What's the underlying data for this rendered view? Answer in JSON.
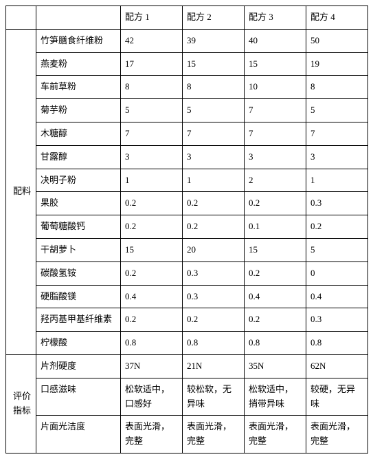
{
  "header": {
    "blank1": "",
    "blank2": "",
    "col1": "配方 1",
    "col2": "配方 2",
    "col3": "配方 3",
    "col4": "配方 4"
  },
  "section1": {
    "label": "配料",
    "rows": [
      {
        "name": "竹笋膳食纤维粉",
        "v1": "42",
        "v2": "39",
        "v3": "40",
        "v4": "50"
      },
      {
        "name": "燕麦粉",
        "v1": "17",
        "v2": "15",
        "v3": "15",
        "v4": "19"
      },
      {
        "name": "车前草粉",
        "v1": "8",
        "v2": "8",
        "v3": "10",
        "v4": "8"
      },
      {
        "name": "菊芋粉",
        "v1": "5",
        "v2": "5",
        "v3": "7",
        "v4": "5"
      },
      {
        "name": "木糖醇",
        "v1": "7",
        "v2": "7",
        "v3": "7",
        "v4": "7"
      },
      {
        "name": "甘露醇",
        "v1": "3",
        "v2": "3",
        "v3": "3",
        "v4": "3"
      },
      {
        "name": "决明子粉",
        "v1": "1",
        "v2": "1",
        "v3": "2",
        "v4": "1"
      },
      {
        "name": "果胶",
        "v1": "0.2",
        "v2": "0.2",
        "v3": "0.2",
        "v4": "0.3"
      },
      {
        "name": "葡萄糖酸钙",
        "v1": "0.2",
        "v2": "0.2",
        "v3": "0.1",
        "v4": "0.2"
      },
      {
        "name": "干胡萝卜",
        "v1": "15",
        "v2": "20",
        "v3": "15",
        "v4": "5"
      },
      {
        "name": "碳酸氢铵",
        "v1": "0.2",
        "v2": "0.3",
        "v3": "0.2",
        "v4": "0"
      },
      {
        "name": "硬脂酸镁",
        "v1": "0.4",
        "v2": "0.3",
        "v3": "0.4",
        "v4": "0.4"
      },
      {
        "name": "羟丙基甲基纤维素",
        "v1": "0.2",
        "v2": "0.2",
        "v3": "0.2",
        "v4": "0.3"
      },
      {
        "name": "柠檬酸",
        "v1": "0.8",
        "v2": "0.8",
        "v3": "0.8",
        "v4": "0.8"
      }
    ]
  },
  "section2": {
    "label": "评价指标",
    "rows": [
      {
        "name": "片剂硬度",
        "v1": "37N",
        "v2": "21N",
        "v3": "35N",
        "v4": "62N"
      },
      {
        "name": "口感滋味",
        "v1": "松软适中，口感好",
        "v2": "较松软，无异味",
        "v3": "松软适中，捎带异味",
        "v4": "较硬，无异味"
      },
      {
        "name": "片面光洁度",
        "v1": "表面光滑，完整",
        "v2": "表面光滑，完整",
        "v3": "表面光滑，完整",
        "v4": "表面光滑，完整"
      }
    ]
  }
}
